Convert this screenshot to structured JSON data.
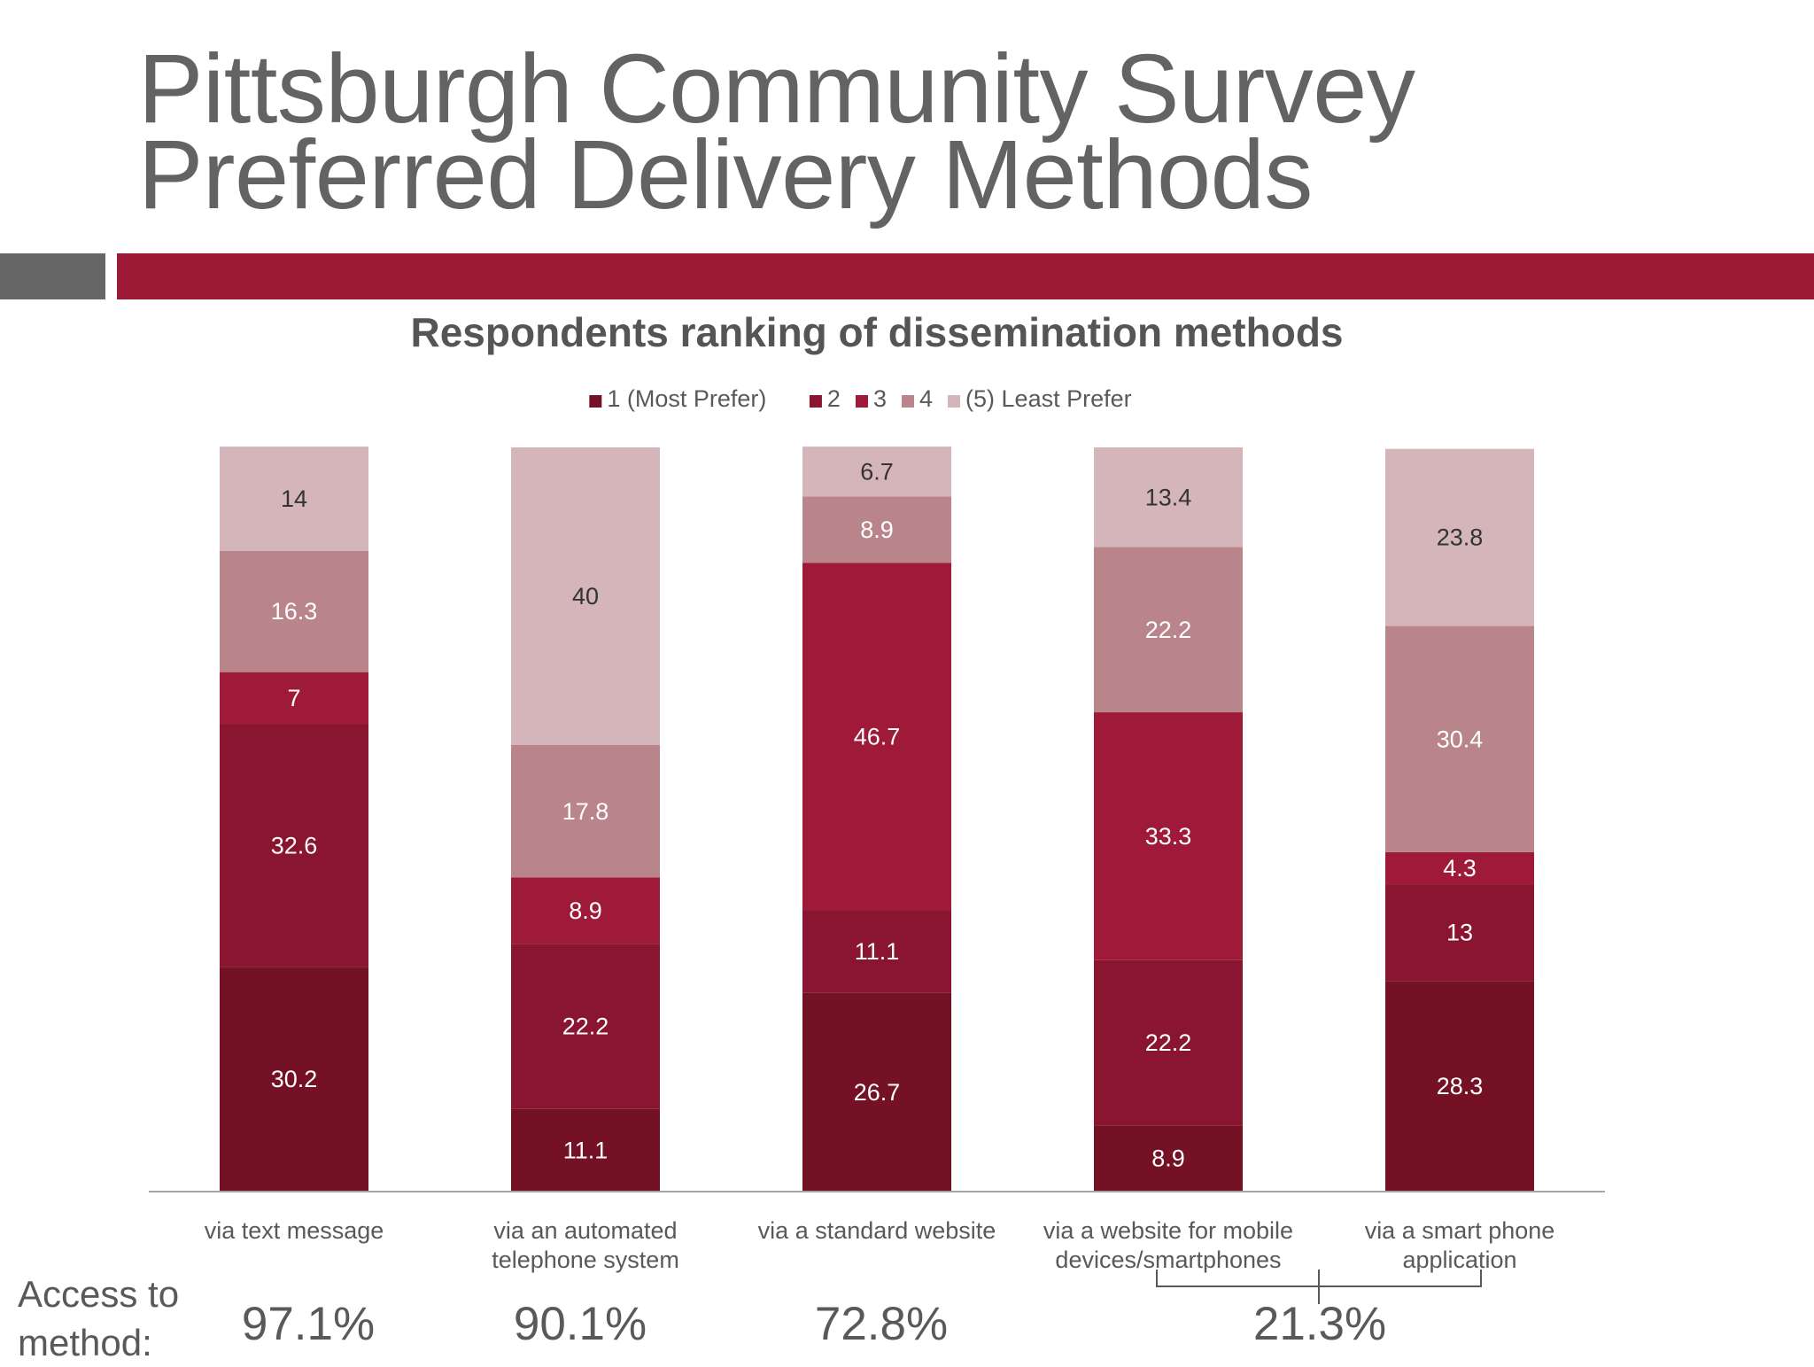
{
  "slide": {
    "title_line1": "Pittsburgh Community Survey",
    "title_line2": "Preferred Delivery Methods"
  },
  "colors": {
    "accent_bar": "#9c1a36",
    "tab_gray": "#666666",
    "text": "#595959"
  },
  "chart_data": {
    "type": "bar",
    "stacked": true,
    "title": "Respondents ranking of dissemination methods",
    "categories": [
      [
        "via text message"
      ],
      [
        "via an automated",
        "telephone system"
      ],
      [
        "via a standard website"
      ],
      [
        "via a website for mobile",
        "devices/smartphones"
      ],
      [
        "via a smart phone",
        "application"
      ]
    ],
    "series": [
      {
        "name": "1 (Most Prefer)",
        "color": "#751125",
        "label_color": "#ffffff",
        "values": [
          30.2,
          11.1,
          26.7,
          8.9,
          28.3
        ]
      },
      {
        "name": "2",
        "color": "#8a1530",
        "label_color": "#ffffff",
        "values": [
          32.6,
          22.2,
          11.1,
          22.2,
          13
        ]
      },
      {
        "name": "3",
        "color": "#9e1a38",
        "label_color": "#ffffff",
        "values": [
          7,
          8.9,
          46.7,
          33.3,
          4.3
        ]
      },
      {
        "name": "4",
        "color": "#b9858b",
        "label_color": "#ffffff",
        "values": [
          16.3,
          17.8,
          8.9,
          22.2,
          30.4
        ]
      },
      {
        "name": "(5) Least Prefer",
        "color": "#d4b5b9",
        "label_color": "#333333",
        "values": [
          14,
          40,
          6.7,
          13.4,
          23.8
        ]
      }
    ],
    "ylim": [
      0,
      100
    ],
    "legend_position": "top",
    "grid": false
  },
  "access": {
    "caption": "Access to\nmethod:",
    "values": [
      "97.1%",
      "90.1%",
      "72.8%",
      "21.3%"
    ]
  }
}
